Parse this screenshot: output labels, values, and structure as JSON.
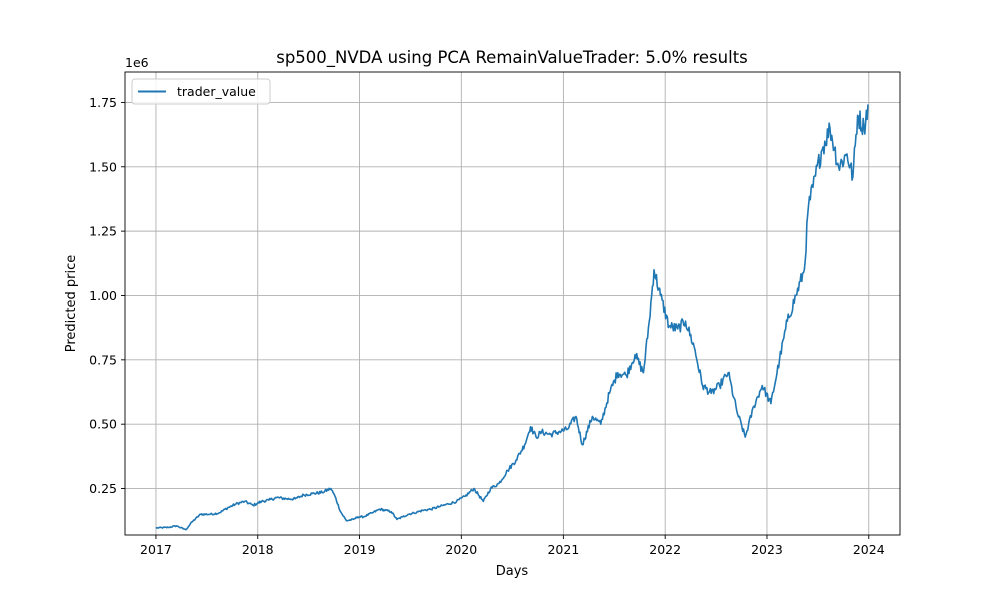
{
  "chart_data": {
    "type": "line",
    "title": "sp500_NVDA using PCA RemainValueTrader: 5.0% results",
    "xlabel": "Days",
    "ylabel": "Predicted price",
    "y_offset_label": "1e6",
    "xlim": [
      "2016-09-12",
      "2024-04-22"
    ],
    "ylim": [
      0.0695,
      1.8682
    ],
    "x_ticks": [
      "2017",
      "2018",
      "2019",
      "2020",
      "2021",
      "2022",
      "2023",
      "2024"
    ],
    "y_ticks": [
      "0.25",
      "0.50",
      "0.75",
      "1.00",
      "1.25",
      "1.50",
      "1.75"
    ],
    "grid": true,
    "legend_position": "upper-left",
    "colors": {
      "trader_value": "#1f77b4",
      "grid": "#b0b0b0"
    },
    "series": [
      {
        "name": "trader_value",
        "x": [
          "2017-01-03",
          "2017-02-15",
          "2017-03-15",
          "2017-04-18",
          "2017-05-10",
          "2017-06-10",
          "2017-07-15",
          "2017-08-15",
          "2017-09-15",
          "2017-10-15",
          "2017-11-15",
          "2017-12-15",
          "2018-01-15",
          "2018-02-10",
          "2018-03-10",
          "2018-04-15",
          "2018-05-15",
          "2018-06-15",
          "2018-07-15",
          "2018-08-20",
          "2018-09-20",
          "2018-10-05",
          "2018-10-25",
          "2018-11-15",
          "2018-12-10",
          "2018-12-26",
          "2019-01-15",
          "2019-02-15",
          "2019-03-15",
          "2019-04-25",
          "2019-05-15",
          "2019-06-05",
          "2019-06-25",
          "2019-07-15",
          "2019-08-15",
          "2019-09-15",
          "2019-10-15",
          "2019-11-15",
          "2019-12-15",
          "2020-01-15",
          "2020-02-15",
          "2020-03-20",
          "2020-04-15",
          "2020-05-15",
          "2020-06-15",
          "2020-07-15",
          "2020-08-15",
          "2020-09-05",
          "2020-09-25",
          "2020-10-15",
          "2020-11-15",
          "2020-12-15",
          "2021-01-15",
          "2021-02-15",
          "2021-03-10",
          "2021-04-15",
          "2021-05-15",
          "2021-06-15",
          "2021-07-15",
          "2021-08-15",
          "2021-09-15",
          "2021-10-15",
          "2021-11-05",
          "2021-11-22",
          "2021-12-15",
          "2022-01-15",
          "2022-02-15",
          "2022-03-15",
          "2022-04-15",
          "2022-05-15",
          "2022-06-15",
          "2022-07-15",
          "2022-08-15",
          "2022-09-15",
          "2022-10-15",
          "2022-11-15",
          "2022-12-15",
          "2023-01-15",
          "2023-02-15",
          "2023-03-15",
          "2023-04-15",
          "2023-05-15",
          "2023-05-30",
          "2023-06-15",
          "2023-07-15",
          "2023-08-15",
          "2023-09-15",
          "2023-10-15",
          "2023-11-05",
          "2023-11-22",
          "2023-12-15",
          "2023-12-29"
        ],
        "values": [
          0.097,
          0.099,
          0.105,
          0.09,
          0.12,
          0.15,
          0.15,
          0.155,
          0.175,
          0.19,
          0.2,
          0.185,
          0.2,
          0.205,
          0.215,
          0.21,
          0.21,
          0.225,
          0.23,
          0.235,
          0.25,
          0.22,
          0.16,
          0.125,
          0.13,
          0.14,
          0.14,
          0.155,
          0.17,
          0.16,
          0.13,
          0.14,
          0.15,
          0.155,
          0.165,
          0.17,
          0.18,
          0.19,
          0.2,
          0.22,
          0.25,
          0.2,
          0.25,
          0.27,
          0.32,
          0.36,
          0.42,
          0.49,
          0.45,
          0.47,
          0.46,
          0.47,
          0.48,
          0.53,
          0.42,
          0.53,
          0.5,
          0.62,
          0.7,
          0.69,
          0.77,
          0.7,
          0.9,
          1.1,
          1.0,
          0.88,
          0.87,
          0.9,
          0.8,
          0.65,
          0.62,
          0.65,
          0.7,
          0.55,
          0.45,
          0.57,
          0.65,
          0.58,
          0.75,
          0.9,
          1.0,
          1.1,
          1.35,
          1.42,
          1.56,
          1.65,
          1.5,
          1.55,
          1.46,
          1.7,
          1.65,
          1.74
        ]
      }
    ]
  }
}
